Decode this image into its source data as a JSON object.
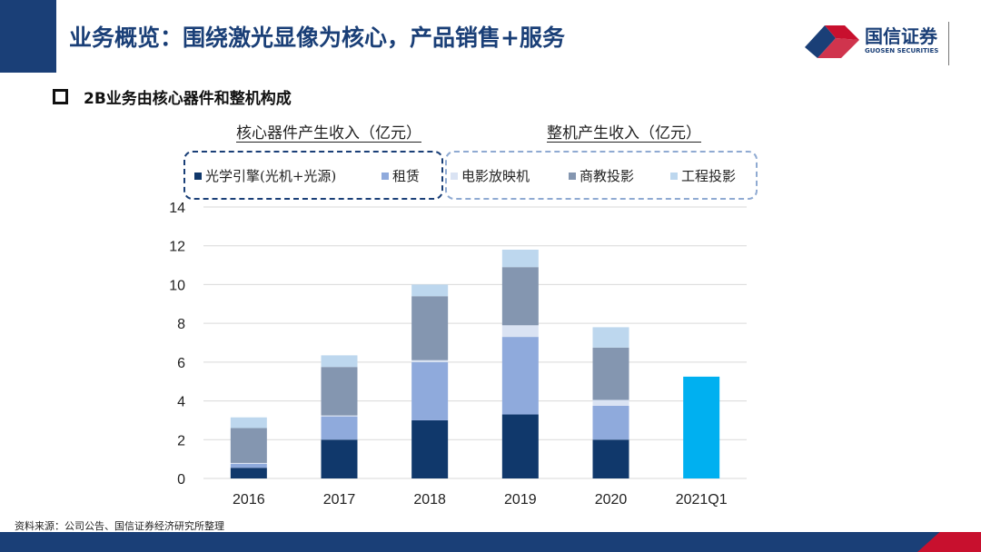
{
  "header": {
    "title": "业务概览：围绕激光显像为核心，产品销售+服务",
    "logo_name": "国信证券",
    "logo_sub": "GUOSEN SECURITIES"
  },
  "subtitle": "2B业务由核心器件和整机构成",
  "group_labels": {
    "core": "核心器件产生收入（亿元）",
    "machine": "整机产生收入（亿元）"
  },
  "source": "资料来源：公司公告、国信证券经济研究所整理",
  "colors": {
    "optical_engine": "#10386b",
    "rental": "#8faadc",
    "cinema": "#dae3f3",
    "commercial": "#8496b0",
    "engineering": "#bdd7ee",
    "q1": "#00b0f0"
  },
  "chart_data": {
    "type": "bar",
    "stacked": true,
    "categories": [
      "2016",
      "2017",
      "2018",
      "2019",
      "2020",
      "2021Q1"
    ],
    "ylim": [
      0,
      14
    ],
    "yticks": [
      "0",
      "2",
      "4",
      "6",
      "8",
      "10",
      "12",
      "14"
    ],
    "series": [
      {
        "name": "光学引擎(光机+光源)",
        "color": "#10386b",
        "values": [
          0.55,
          2.0,
          3.0,
          3.3,
          2.0,
          0
        ]
      },
      {
        "name": "租赁",
        "color": "#8faadc",
        "values": [
          0.2,
          1.2,
          3.0,
          4.0,
          1.75,
          0
        ]
      },
      {
        "name": "电影放映机",
        "color": "#dae3f3",
        "values": [
          0.05,
          0.05,
          0.1,
          0.6,
          0.3,
          0
        ]
      },
      {
        "name": "商教投影",
        "color": "#8496b0",
        "values": [
          1.8,
          2.5,
          3.3,
          3.0,
          2.7,
          0
        ]
      },
      {
        "name": "工程投影",
        "color": "#bdd7ee",
        "values": [
          0.55,
          0.6,
          0.6,
          0.9,
          1.05,
          0
        ]
      },
      {
        "name": "2021Q1",
        "color": "#00b0f0",
        "values": [
          0,
          0,
          0,
          0,
          0,
          5.25
        ],
        "in_legend": false
      }
    ]
  }
}
